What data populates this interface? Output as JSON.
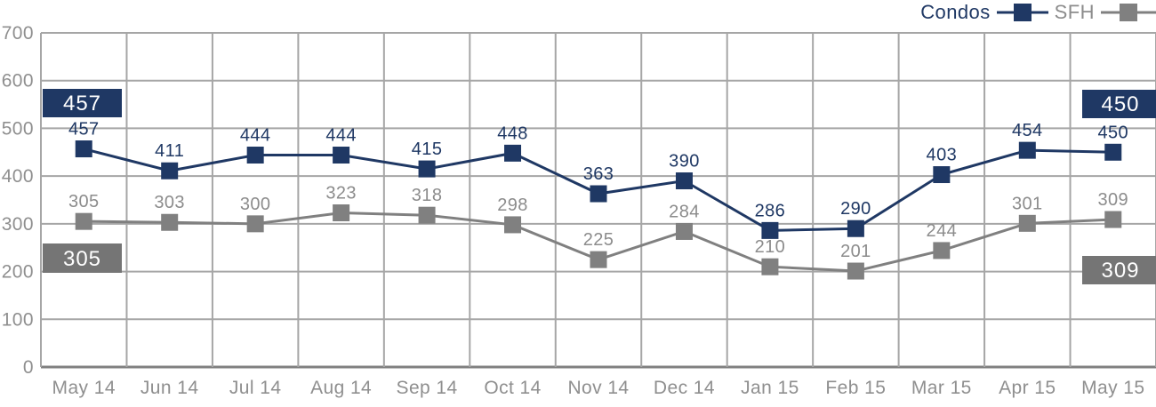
{
  "chart_data": {
    "type": "line",
    "title": "",
    "xlabel": "",
    "ylabel": "",
    "categories": [
      "May 14",
      "Jun 14",
      "Jul 14",
      "Aug 14",
      "Sep 14",
      "Oct 14",
      "Nov 14",
      "Dec 14",
      "Jan 15",
      "Feb 15",
      "Mar 15",
      "Apr 15",
      "May 15"
    ],
    "yticks": [
      0,
      100,
      200,
      300,
      400,
      500,
      600,
      700
    ],
    "ylim": [
      0,
      700
    ],
    "grid": true,
    "legend_position": "top-right",
    "series": [
      {
        "name": "Condos",
        "color": "#1f3864",
        "label_color": "#1f3864",
        "box_color": "#1f3864",
        "values": [
          457,
          411,
          444,
          444,
          415,
          448,
          363,
          390,
          286,
          290,
          403,
          454,
          450
        ]
      },
      {
        "name": "SFH",
        "color": "#808080",
        "label_color": "#8c8c8c",
        "box_color": "#757575",
        "values": [
          305,
          303,
          300,
          323,
          318,
          298,
          225,
          284,
          210,
          201,
          244,
          301,
          309
        ]
      }
    ],
    "callouts": [
      {
        "series": "Condos",
        "position": "left",
        "value": "457"
      },
      {
        "series": "SFH",
        "position": "left",
        "value": "305"
      },
      {
        "series": "Condos",
        "position": "right",
        "value": "450"
      },
      {
        "series": "SFH",
        "position": "right",
        "value": "309"
      }
    ]
  }
}
